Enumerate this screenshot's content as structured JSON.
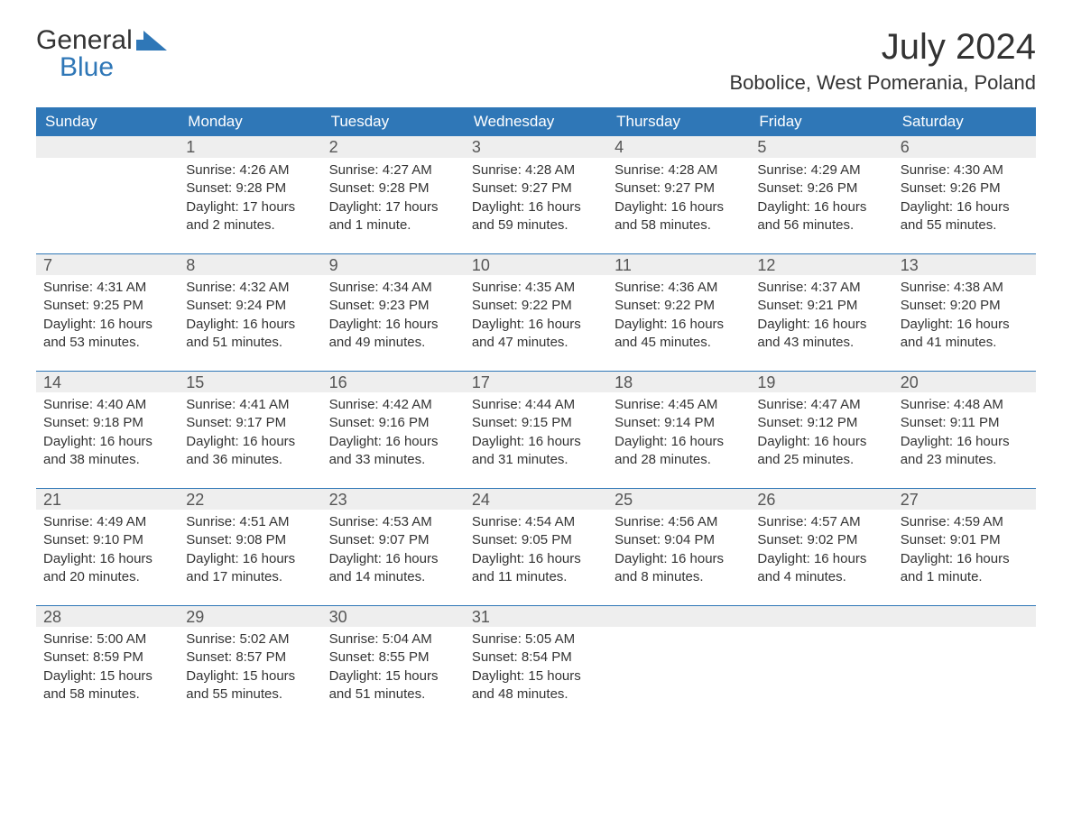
{
  "logo": {
    "line1": "General",
    "line2": "Blue"
  },
  "title": "July 2024",
  "location": "Bobolice, West Pomerania, Poland",
  "colors": {
    "header_bg": "#2f77b7",
    "header_text": "#ffffff",
    "daynum_bg": "#eeeeee",
    "daynum_border": "#2f77b7",
    "body_text": "#333333",
    "logo_accent": "#2f77b7"
  },
  "dayLabels": [
    "Sunday",
    "Monday",
    "Tuesday",
    "Wednesday",
    "Thursday",
    "Friday",
    "Saturday"
  ],
  "weeks": [
    [
      {
        "num": "",
        "lines": []
      },
      {
        "num": "1",
        "lines": [
          "Sunrise: 4:26 AM",
          "Sunset: 9:28 PM",
          "Daylight: 17 hours",
          "and 2 minutes."
        ]
      },
      {
        "num": "2",
        "lines": [
          "Sunrise: 4:27 AM",
          "Sunset: 9:28 PM",
          "Daylight: 17 hours",
          "and 1 minute."
        ]
      },
      {
        "num": "3",
        "lines": [
          "Sunrise: 4:28 AM",
          "Sunset: 9:27 PM",
          "Daylight: 16 hours",
          "and 59 minutes."
        ]
      },
      {
        "num": "4",
        "lines": [
          "Sunrise: 4:28 AM",
          "Sunset: 9:27 PM",
          "Daylight: 16 hours",
          "and 58 minutes."
        ]
      },
      {
        "num": "5",
        "lines": [
          "Sunrise: 4:29 AM",
          "Sunset: 9:26 PM",
          "Daylight: 16 hours",
          "and 56 minutes."
        ]
      },
      {
        "num": "6",
        "lines": [
          "Sunrise: 4:30 AM",
          "Sunset: 9:26 PM",
          "Daylight: 16 hours",
          "and 55 minutes."
        ]
      }
    ],
    [
      {
        "num": "7",
        "lines": [
          "Sunrise: 4:31 AM",
          "Sunset: 9:25 PM",
          "Daylight: 16 hours",
          "and 53 minutes."
        ]
      },
      {
        "num": "8",
        "lines": [
          "Sunrise: 4:32 AM",
          "Sunset: 9:24 PM",
          "Daylight: 16 hours",
          "and 51 minutes."
        ]
      },
      {
        "num": "9",
        "lines": [
          "Sunrise: 4:34 AM",
          "Sunset: 9:23 PM",
          "Daylight: 16 hours",
          "and 49 minutes."
        ]
      },
      {
        "num": "10",
        "lines": [
          "Sunrise: 4:35 AM",
          "Sunset: 9:22 PM",
          "Daylight: 16 hours",
          "and 47 minutes."
        ]
      },
      {
        "num": "11",
        "lines": [
          "Sunrise: 4:36 AM",
          "Sunset: 9:22 PM",
          "Daylight: 16 hours",
          "and 45 minutes."
        ]
      },
      {
        "num": "12",
        "lines": [
          "Sunrise: 4:37 AM",
          "Sunset: 9:21 PM",
          "Daylight: 16 hours",
          "and 43 minutes."
        ]
      },
      {
        "num": "13",
        "lines": [
          "Sunrise: 4:38 AM",
          "Sunset: 9:20 PM",
          "Daylight: 16 hours",
          "and 41 minutes."
        ]
      }
    ],
    [
      {
        "num": "14",
        "lines": [
          "Sunrise: 4:40 AM",
          "Sunset: 9:18 PM",
          "Daylight: 16 hours",
          "and 38 minutes."
        ]
      },
      {
        "num": "15",
        "lines": [
          "Sunrise: 4:41 AM",
          "Sunset: 9:17 PM",
          "Daylight: 16 hours",
          "and 36 minutes."
        ]
      },
      {
        "num": "16",
        "lines": [
          "Sunrise: 4:42 AM",
          "Sunset: 9:16 PM",
          "Daylight: 16 hours",
          "and 33 minutes."
        ]
      },
      {
        "num": "17",
        "lines": [
          "Sunrise: 4:44 AM",
          "Sunset: 9:15 PM",
          "Daylight: 16 hours",
          "and 31 minutes."
        ]
      },
      {
        "num": "18",
        "lines": [
          "Sunrise: 4:45 AM",
          "Sunset: 9:14 PM",
          "Daylight: 16 hours",
          "and 28 minutes."
        ]
      },
      {
        "num": "19",
        "lines": [
          "Sunrise: 4:47 AM",
          "Sunset: 9:12 PM",
          "Daylight: 16 hours",
          "and 25 minutes."
        ]
      },
      {
        "num": "20",
        "lines": [
          "Sunrise: 4:48 AM",
          "Sunset: 9:11 PM",
          "Daylight: 16 hours",
          "and 23 minutes."
        ]
      }
    ],
    [
      {
        "num": "21",
        "lines": [
          "Sunrise: 4:49 AM",
          "Sunset: 9:10 PM",
          "Daylight: 16 hours",
          "and 20 minutes."
        ]
      },
      {
        "num": "22",
        "lines": [
          "Sunrise: 4:51 AM",
          "Sunset: 9:08 PM",
          "Daylight: 16 hours",
          "and 17 minutes."
        ]
      },
      {
        "num": "23",
        "lines": [
          "Sunrise: 4:53 AM",
          "Sunset: 9:07 PM",
          "Daylight: 16 hours",
          "and 14 minutes."
        ]
      },
      {
        "num": "24",
        "lines": [
          "Sunrise: 4:54 AM",
          "Sunset: 9:05 PM",
          "Daylight: 16 hours",
          "and 11 minutes."
        ]
      },
      {
        "num": "25",
        "lines": [
          "Sunrise: 4:56 AM",
          "Sunset: 9:04 PM",
          "Daylight: 16 hours",
          "and 8 minutes."
        ]
      },
      {
        "num": "26",
        "lines": [
          "Sunrise: 4:57 AM",
          "Sunset: 9:02 PM",
          "Daylight: 16 hours",
          "and 4 minutes."
        ]
      },
      {
        "num": "27",
        "lines": [
          "Sunrise: 4:59 AM",
          "Sunset: 9:01 PM",
          "Daylight: 16 hours",
          "and 1 minute."
        ]
      }
    ],
    [
      {
        "num": "28",
        "lines": [
          "Sunrise: 5:00 AM",
          "Sunset: 8:59 PM",
          "Daylight: 15 hours",
          "and 58 minutes."
        ]
      },
      {
        "num": "29",
        "lines": [
          "Sunrise: 5:02 AM",
          "Sunset: 8:57 PM",
          "Daylight: 15 hours",
          "and 55 minutes."
        ]
      },
      {
        "num": "30",
        "lines": [
          "Sunrise: 5:04 AM",
          "Sunset: 8:55 PM",
          "Daylight: 15 hours",
          "and 51 minutes."
        ]
      },
      {
        "num": "31",
        "lines": [
          "Sunrise: 5:05 AM",
          "Sunset: 8:54 PM",
          "Daylight: 15 hours",
          "and 48 minutes."
        ]
      },
      {
        "num": "",
        "lines": []
      },
      {
        "num": "",
        "lines": []
      },
      {
        "num": "",
        "lines": []
      }
    ]
  ]
}
